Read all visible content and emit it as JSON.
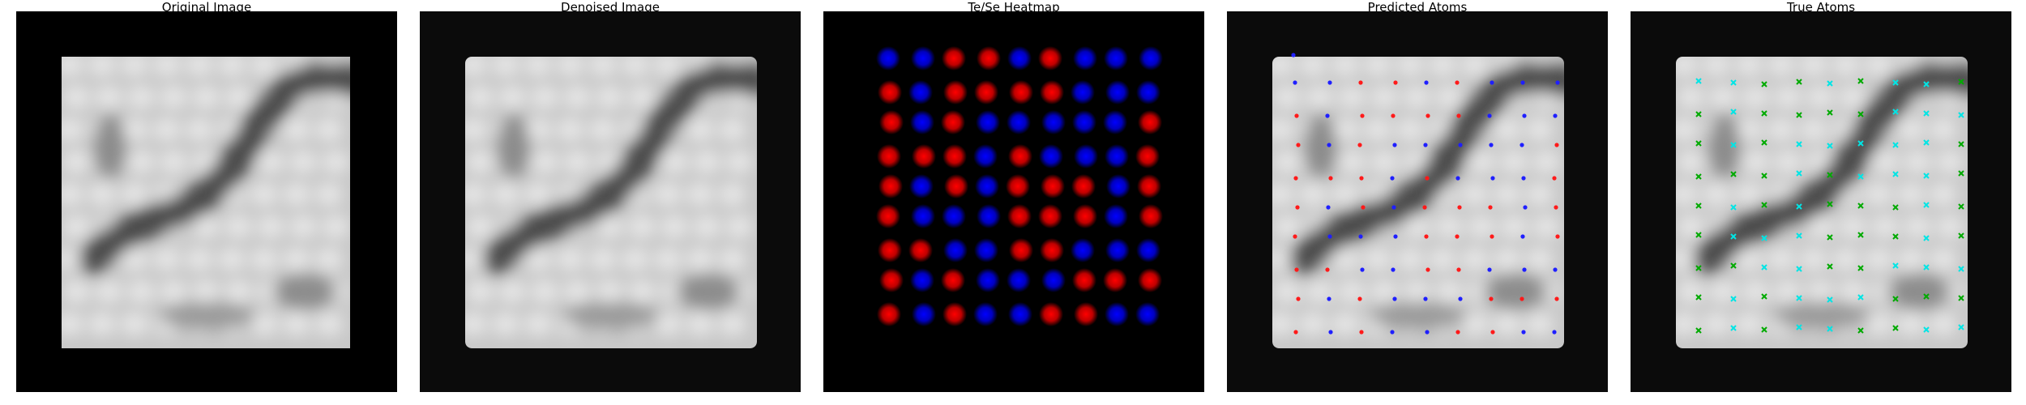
{
  "figure": {
    "panels": [
      {
        "title": "Original Image",
        "kind": "original"
      },
      {
        "title": "Denoised Image",
        "kind": "denoised"
      },
      {
        "title": "Te/Se Heatmap",
        "kind": "heatmap"
      },
      {
        "title": "Predicted Atoms",
        "kind": "predicted"
      },
      {
        "title": "True Atoms",
        "kind": "true"
      }
    ],
    "colors": {
      "background": "#000000",
      "te_predicted": "#ff1a1a",
      "se_predicted": "#1f1fff",
      "heatmap_te": "#ff0000",
      "heatmap_se": "#0000ff",
      "true_atom_a": "#00e5e5",
      "true_atom_b": "#00aa00"
    },
    "marker_types": {
      "predicted": "dot",
      "true": "x"
    }
  }
}
